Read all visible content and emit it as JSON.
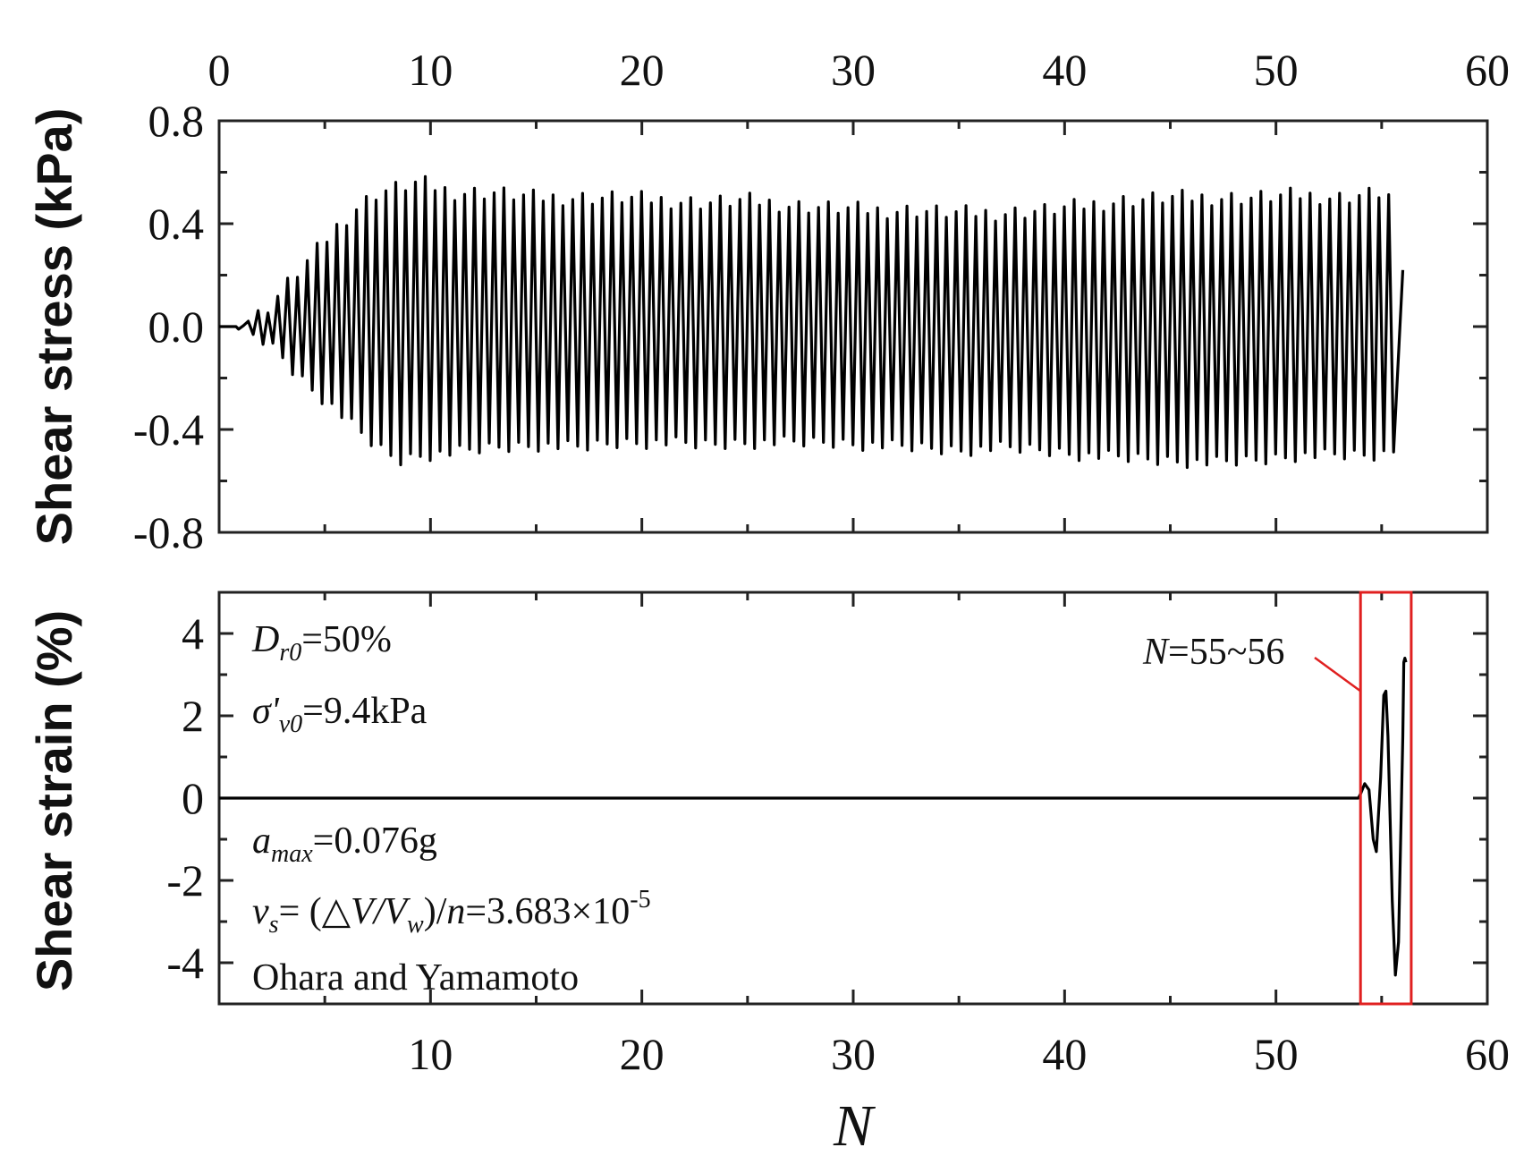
{
  "chart_data": [
    {
      "type": "line",
      "panel": "top",
      "ylabel": "Shear stress (kPa)",
      "xlim": [
        0,
        60
      ],
      "ylim": [
        -0.8,
        0.8
      ],
      "x_ticks": [
        0,
        10,
        20,
        30,
        40,
        50,
        60
      ],
      "x_tick_labels": [
        "0",
        "10",
        "20",
        "30",
        "40",
        "50",
        "60"
      ],
      "y_ticks": [
        0.8,
        0.4,
        0.0,
        -0.4,
        -0.8
      ],
      "y_tick_labels": [
        "0.8",
        "0.4",
        "0.0",
        "-0.4",
        "-0.8"
      ],
      "grid": false,
      "series": [
        {
          "cycle_start": 0.8,
          "cycle_end": 56.0,
          "cycles_per_unit_N": 2.15,
          "peaks": [
            [
              1.2,
              0.02,
              -0.02
            ],
            [
              2.0,
              0.05,
              -0.05
            ],
            [
              2.8,
              0.12,
              -0.1
            ],
            [
              3.6,
              0.2,
              -0.18
            ],
            [
              4.5,
              0.28,
              -0.25
            ],
            [
              5.5,
              0.38,
              -0.32
            ],
            [
              6.5,
              0.46,
              -0.4
            ],
            [
              7.5,
              0.52,
              -0.47
            ],
            [
              8.5,
              0.54,
              -0.52
            ],
            [
              9.5,
              0.56,
              -0.5
            ],
            [
              11.0,
              0.52,
              -0.49
            ],
            [
              13.0,
              0.52,
              -0.47
            ],
            [
              15.0,
              0.5,
              -0.46
            ],
            [
              17.0,
              0.5,
              -0.47
            ],
            [
              19.0,
              0.5,
              -0.45
            ],
            [
              21.0,
              0.49,
              -0.45
            ],
            [
              23.0,
              0.48,
              -0.46
            ],
            [
              25.0,
              0.49,
              -0.45
            ],
            [
              27.0,
              0.47,
              -0.45
            ],
            [
              29.0,
              0.46,
              -0.45
            ],
            [
              31.0,
              0.45,
              -0.46
            ],
            [
              33.0,
              0.45,
              -0.47
            ],
            [
              35.0,
              0.44,
              -0.48
            ],
            [
              37.0,
              0.44,
              -0.47
            ],
            [
              39.0,
              0.45,
              -0.48
            ],
            [
              41.0,
              0.47,
              -0.5
            ],
            [
              43.0,
              0.49,
              -0.51
            ],
            [
              45.0,
              0.5,
              -0.52
            ],
            [
              47.0,
              0.5,
              -0.53
            ],
            [
              49.0,
              0.5,
              -0.52
            ],
            [
              51.0,
              0.51,
              -0.5
            ],
            [
              53.0,
              0.5,
              -0.5
            ],
            [
              55.0,
              0.52,
              -0.5
            ],
            [
              56.0,
              0.48,
              -0.47
            ]
          ],
          "end_value": 0.22
        }
      ]
    },
    {
      "type": "line",
      "panel": "bottom",
      "xlabel": "N",
      "ylabel": "Shear strain (%)",
      "xlim": [
        0,
        60
      ],
      "ylim": [
        -5,
        5
      ],
      "x_ticks": [
        0,
        10,
        20,
        30,
        40,
        50,
        60
      ],
      "x_tick_labels": [
        "",
        "10",
        "20",
        "30",
        "40",
        "50",
        "60"
      ],
      "y_ticks": [
        4,
        2,
        0,
        -2,
        -4
      ],
      "y_tick_labels": [
        "4",
        "2",
        "0",
        "-2",
        "-4"
      ],
      "grid": false,
      "series": [
        {
          "x": [
            0,
            53.9,
            54.0,
            54.2,
            54.4,
            54.6,
            54.75,
            54.95,
            55.1,
            55.2,
            55.3,
            55.4,
            55.5,
            55.65,
            55.8,
            55.9,
            56.0,
            56.05,
            56.1,
            56.15
          ],
          "y": [
            0,
            0,
            0.1,
            0.35,
            0.2,
            -1.0,
            -1.3,
            0.5,
            2.5,
            2.6,
            1.5,
            -0.5,
            -2.5,
            -4.3,
            -3.5,
            -1.0,
            1.5,
            3.3,
            3.4,
            3.3
          ]
        }
      ],
      "highlight_region": {
        "x": [
          54.0,
          56.4
        ],
        "label": "N=55~56",
        "color": "#e02020"
      },
      "annotations": [
        {
          "id": "dr0",
          "text": "D_r0=50%"
        },
        {
          "id": "sigma",
          "text": "σ'_v0=9.4kPa"
        },
        {
          "id": "amax",
          "text": "a_max=0.076g"
        },
        {
          "id": "vs",
          "text": "v_s= (△V/V_w)/n=3.683×10^-5"
        },
        {
          "id": "source",
          "text": "Ohara and Yamamoto"
        }
      ]
    }
  ],
  "top_panel": {
    "ylabel": "Shear stress (kPa)"
  },
  "bottom_panel": {
    "ylabel": "Shear strain (%)",
    "xlabel": "N",
    "highlight_label_n": "N",
    "highlight_label_rest": "=55~56",
    "dr0_main": "D",
    "dr0_sub": "r0",
    "dr0_value": "=50%",
    "sigma_main": "σ'",
    "sigma_sub": "v0",
    "sigma_value": "=9.4kPa",
    "amax_main": "a",
    "amax_sub": "max",
    "amax_value": "=0.076g",
    "vs_main": "v",
    "vs_sub": "s",
    "vs_eq": "= (△",
    "vs_v": "V/V",
    "vs_w": "w",
    "vs_slash": ")/",
    "vs_n": "n",
    "vs_value": "=3.683×10",
    "vs_exp": "-5",
    "source": "Ohara and Yamamoto"
  },
  "colors": {
    "line": "#000000",
    "frame": "#222222",
    "highlight": "#e02020"
  }
}
